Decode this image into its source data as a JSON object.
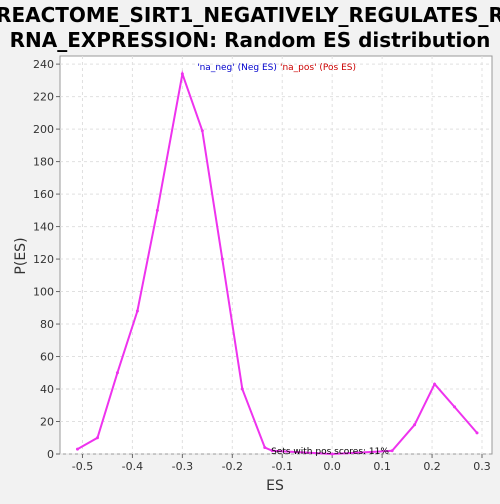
{
  "chart_data": {
    "type": "line",
    "title_line1": "REACTOME_SIRT1_NEGATIVELY_REGULATES_R",
    "title_line2": "RNA_EXPRESSION: Random ES distribution",
    "xlabel": "ES",
    "ylabel": "P(ES)",
    "xlim": [
      -0.545,
      0.32
    ],
    "ylim": [
      0,
      245
    ],
    "grid": true,
    "x_ticks": [
      {
        "value": -0.5,
        "label": "-0.5"
      },
      {
        "value": -0.4,
        "label": "-0.4"
      },
      {
        "value": -0.3,
        "label": "-0.3"
      },
      {
        "value": -0.2,
        "label": "-0.2"
      },
      {
        "value": -0.1,
        "label": "-0.1"
      },
      {
        "value": 0.0,
        "label": "0.0"
      },
      {
        "value": 0.1,
        "label": "0.1"
      },
      {
        "value": 0.2,
        "label": "0.2"
      },
      {
        "value": 0.3,
        "label": "0.3"
      }
    ],
    "y_ticks": [
      {
        "value": 0,
        "label": "0"
      },
      {
        "value": 20,
        "label": "20"
      },
      {
        "value": 40,
        "label": "40"
      },
      {
        "value": 60,
        "label": "60"
      },
      {
        "value": 80,
        "label": "80"
      },
      {
        "value": 100,
        "label": "100"
      },
      {
        "value": 120,
        "label": "120"
      },
      {
        "value": 140,
        "label": "140"
      },
      {
        "value": 160,
        "label": "160"
      },
      {
        "value": 180,
        "label": "180"
      },
      {
        "value": 200,
        "label": "200"
      },
      {
        "value": 220,
        "label": "220"
      },
      {
        "value": 240,
        "label": "240"
      }
    ],
    "legend": {
      "placement": "top-center",
      "neg_label": "'na_neg' (Neg ES)",
      "pos_label": "'na_pos' (Pos ES)",
      "neg_color": "#0000cc",
      "pos_color": "#cc0000"
    },
    "annotation": "Sets with pos scores: 11%",
    "series": [
      {
        "color": "#ee33ee",
        "x": [
          -0.51,
          -0.47,
          -0.43,
          -0.39,
          -0.35,
          -0.3,
          -0.26,
          -0.22,
          -0.18,
          -0.135,
          -0.12,
          0.0,
          0.12,
          0.165,
          0.205,
          0.245,
          0.29
        ],
        "y": [
          3,
          10,
          50,
          88,
          150,
          234,
          199,
          120,
          40,
          4,
          2,
          0,
          2,
          18,
          43,
          29,
          13
        ]
      }
    ]
  }
}
